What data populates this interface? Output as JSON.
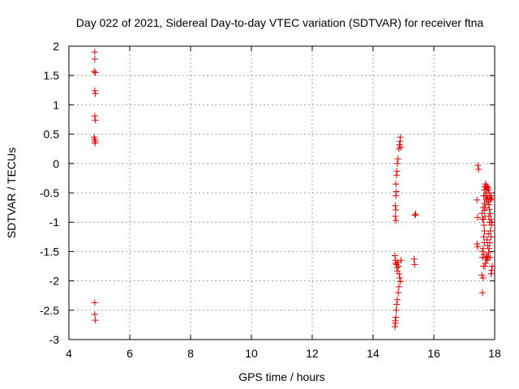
{
  "chart_data": {
    "type": "scatter",
    "title": "Day 022 of 2021, Sidereal Day-to-day VTEC variation (SDTVAR) for receiver ftna",
    "xlabel": "GPS time / hours",
    "ylabel": "SDTVAR / TECUs",
    "xlim": [
      4,
      18
    ],
    "ylim": [
      -3,
      2
    ],
    "xticks": [
      4,
      6,
      8,
      10,
      12,
      14,
      16,
      18
    ],
    "xtick_labels": [
      "4",
      "6",
      "8",
      "10",
      "12",
      "14",
      "16",
      "18"
    ],
    "yticks": [
      -3,
      -2.5,
      -2,
      -1.5,
      -1,
      -0.5,
      0,
      0.5,
      1,
      1.5,
      2
    ],
    "ytick_labels": [
      "-3",
      "-2.5",
      "-2",
      "-1.5",
      "-1",
      "-0.5",
      "0",
      "0.5",
      "1",
      "1.5",
      "2"
    ],
    "grid": true,
    "marker": "plus",
    "color": "#e00000",
    "series": [
      {
        "points": [
          [
            4.85,
            1.9
          ],
          [
            4.85,
            1.78
          ],
          [
            4.83,
            1.57
          ],
          [
            4.87,
            1.55
          ],
          [
            4.85,
            1.24
          ],
          [
            4.87,
            1.19
          ],
          [
            4.85,
            0.81
          ],
          [
            4.87,
            0.74
          ],
          [
            4.83,
            0.45
          ],
          [
            4.85,
            0.41
          ],
          [
            4.87,
            0.38
          ],
          [
            4.85,
            0.35
          ],
          [
            4.85,
            -2.37
          ],
          [
            4.85,
            -2.57
          ],
          [
            4.87,
            -2.67
          ],
          [
            14.75,
            -0.97
          ],
          [
            14.73,
            -0.9
          ],
          [
            14.75,
            -0.79
          ],
          [
            14.73,
            -0.72
          ],
          [
            14.75,
            -0.55
          ],
          [
            14.77,
            -0.48
          ],
          [
            14.75,
            -0.35
          ],
          [
            14.77,
            -0.2
          ],
          [
            14.79,
            -0.13
          ],
          [
            14.8,
            0.0
          ],
          [
            14.82,
            0.08
          ],
          [
            14.85,
            0.25
          ],
          [
            14.87,
            0.32
          ],
          [
            14.89,
            0.38
          ],
          [
            14.9,
            0.45
          ],
          [
            14.91,
            0.28
          ],
          [
            14.72,
            -1.57
          ],
          [
            14.74,
            -1.65
          ],
          [
            14.75,
            -1.7
          ],
          [
            14.77,
            -1.72
          ],
          [
            14.79,
            -1.78
          ],
          [
            14.8,
            -1.83
          ],
          [
            14.82,
            -1.68
          ],
          [
            14.84,
            -1.75
          ],
          [
            14.86,
            -1.88
          ],
          [
            14.88,
            -1.95
          ],
          [
            14.9,
            -2.01
          ],
          [
            14.92,
            -1.65
          ],
          [
            14.85,
            -2.1
          ],
          [
            14.83,
            -2.2
          ],
          [
            14.8,
            -2.32
          ],
          [
            14.78,
            -2.4
          ],
          [
            14.76,
            -2.5
          ],
          [
            14.75,
            -2.62
          ],
          [
            14.73,
            -2.68
          ],
          [
            14.72,
            -2.78
          ],
          [
            14.74,
            -2.72
          ],
          [
            15.38,
            -0.88
          ],
          [
            15.4,
            -0.86
          ],
          [
            15.35,
            -1.63
          ],
          [
            15.37,
            -1.72
          ],
          [
            17.45,
            -0.03
          ],
          [
            17.47,
            -0.1
          ],
          [
            17.42,
            -0.62
          ],
          [
            17.44,
            -0.92
          ],
          [
            17.42,
            -1.37
          ],
          [
            17.44,
            -1.42
          ],
          [
            17.6,
            -2.2
          ],
          [
            17.62,
            -1.95
          ],
          [
            17.58,
            -1.9
          ],
          [
            17.63,
            -1.75
          ],
          [
            17.6,
            -1.6
          ],
          [
            17.65,
            -1.55
          ],
          [
            17.62,
            -1.45
          ],
          [
            17.66,
            -1.35
          ],
          [
            17.64,
            -1.25
          ],
          [
            17.67,
            -1.15
          ],
          [
            17.65,
            -1.05
          ],
          [
            17.63,
            -0.95
          ],
          [
            17.68,
            -0.9
          ],
          [
            17.66,
            -0.8
          ],
          [
            17.7,
            -0.75
          ],
          [
            17.67,
            -0.68
          ],
          [
            17.72,
            -0.62
          ],
          [
            17.69,
            -0.55
          ],
          [
            17.74,
            -0.5
          ],
          [
            17.71,
            -0.45
          ],
          [
            17.76,
            -0.42
          ],
          [
            17.73,
            -0.38
          ],
          [
            17.78,
            -0.4
          ],
          [
            17.8,
            -0.45
          ],
          [
            17.75,
            -0.55
          ],
          [
            17.82,
            -0.5
          ],
          [
            17.77,
            -0.6
          ],
          [
            17.84,
            -0.58
          ],
          [
            17.79,
            -0.65
          ],
          [
            17.86,
            -0.62
          ],
          [
            17.81,
            -0.7
          ],
          [
            17.88,
            -0.55
          ],
          [
            17.83,
            -0.78
          ],
          [
            17.9,
            -0.6
          ],
          [
            17.85,
            -0.85
          ],
          [
            17.87,
            -0.95
          ],
          [
            17.89,
            -1.05
          ],
          [
            17.91,
            -1.0
          ],
          [
            17.86,
            -1.15
          ],
          [
            17.88,
            -1.25
          ],
          [
            17.84,
            -1.35
          ],
          [
            17.82,
            -1.45
          ],
          [
            17.8,
            -1.52
          ],
          [
            17.78,
            -1.6
          ],
          [
            17.76,
            -1.65
          ],
          [
            17.74,
            -1.58
          ],
          [
            17.72,
            -1.62
          ],
          [
            17.7,
            -1.7
          ],
          [
            17.68,
            -1.75
          ],
          [
            17.9,
            -1.82
          ],
          [
            17.88,
            -1.88
          ],
          [
            17.92,
            -1.75
          ],
          [
            17.6,
            -1.5
          ],
          [
            17.62,
            -0.75
          ],
          [
            17.64,
            -0.55
          ],
          [
            17.66,
            -0.45
          ],
          [
            17.68,
            -0.4
          ],
          [
            17.7,
            -0.35
          ],
          [
            17.58,
            -0.85
          ],
          [
            17.6,
            -0.95
          ],
          [
            17.75,
            -1.3
          ],
          [
            17.77,
            -1.4
          ],
          [
            17.79,
            -1.2
          ],
          [
            17.81,
            -0.9
          ],
          [
            17.83,
            -1.0
          ],
          [
            17.85,
            -1.6
          ]
        ]
      }
    ]
  }
}
